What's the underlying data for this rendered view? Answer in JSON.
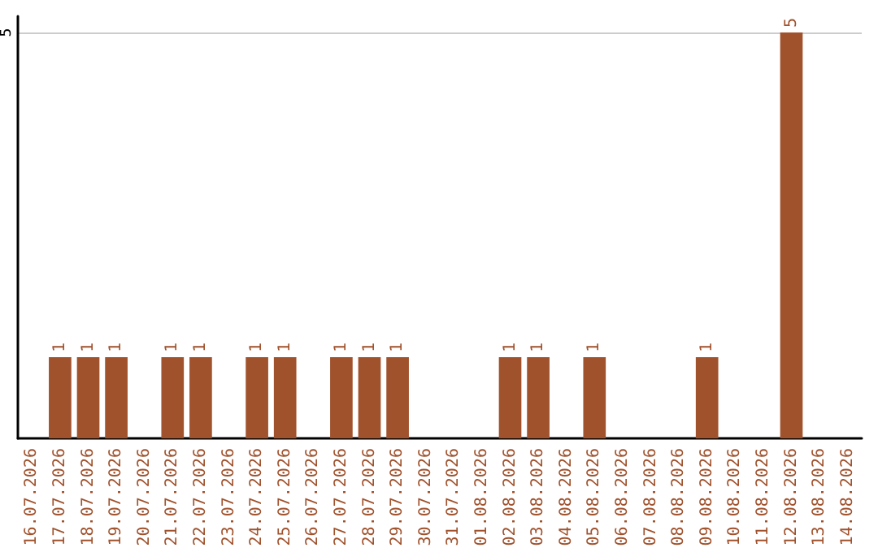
{
  "chart_data": {
    "type": "bar",
    "categories": [
      "16.07.2026",
      "17.07.2026",
      "18.07.2026",
      "19.07.2026",
      "20.07.2026",
      "21.07.2026",
      "22.07.2026",
      "23.07.2026",
      "24.07.2026",
      "25.07.2026",
      "26.07.2026",
      "27.07.2026",
      "28.07.2026",
      "29.07.2026",
      "30.07.2026",
      "31.07.2026",
      "01.08.2026",
      "02.08.2026",
      "03.08.2026",
      "04.08.2026",
      "05.08.2026",
      "06.08.2026",
      "07.08.2026",
      "08.08.2026",
      "09.08.2026",
      "10.08.2026",
      "11.08.2026",
      "12.08.2026",
      "13.08.2026",
      "14.08.2026"
    ],
    "values": [
      0,
      1,
      1,
      1,
      0,
      1,
      1,
      0,
      1,
      1,
      0,
      1,
      1,
      1,
      0,
      0,
      0,
      1,
      1,
      0,
      1,
      0,
      0,
      0,
      1,
      0,
      0,
      5,
      0,
      0
    ],
    "value_labels": [
      null,
      "1",
      "1",
      "1",
      null,
      "1",
      "1",
      null,
      "1",
      "1",
      null,
      "1",
      "1",
      "1",
      null,
      null,
      null,
      "1",
      "1",
      null,
      "1",
      null,
      null,
      null,
      "1",
      null,
      null,
      "5",
      null,
      null
    ],
    "color": "#a0522d",
    "ylim": [
      0,
      5.2
    ],
    "yticks": [
      5
    ],
    "grid": "y"
  }
}
